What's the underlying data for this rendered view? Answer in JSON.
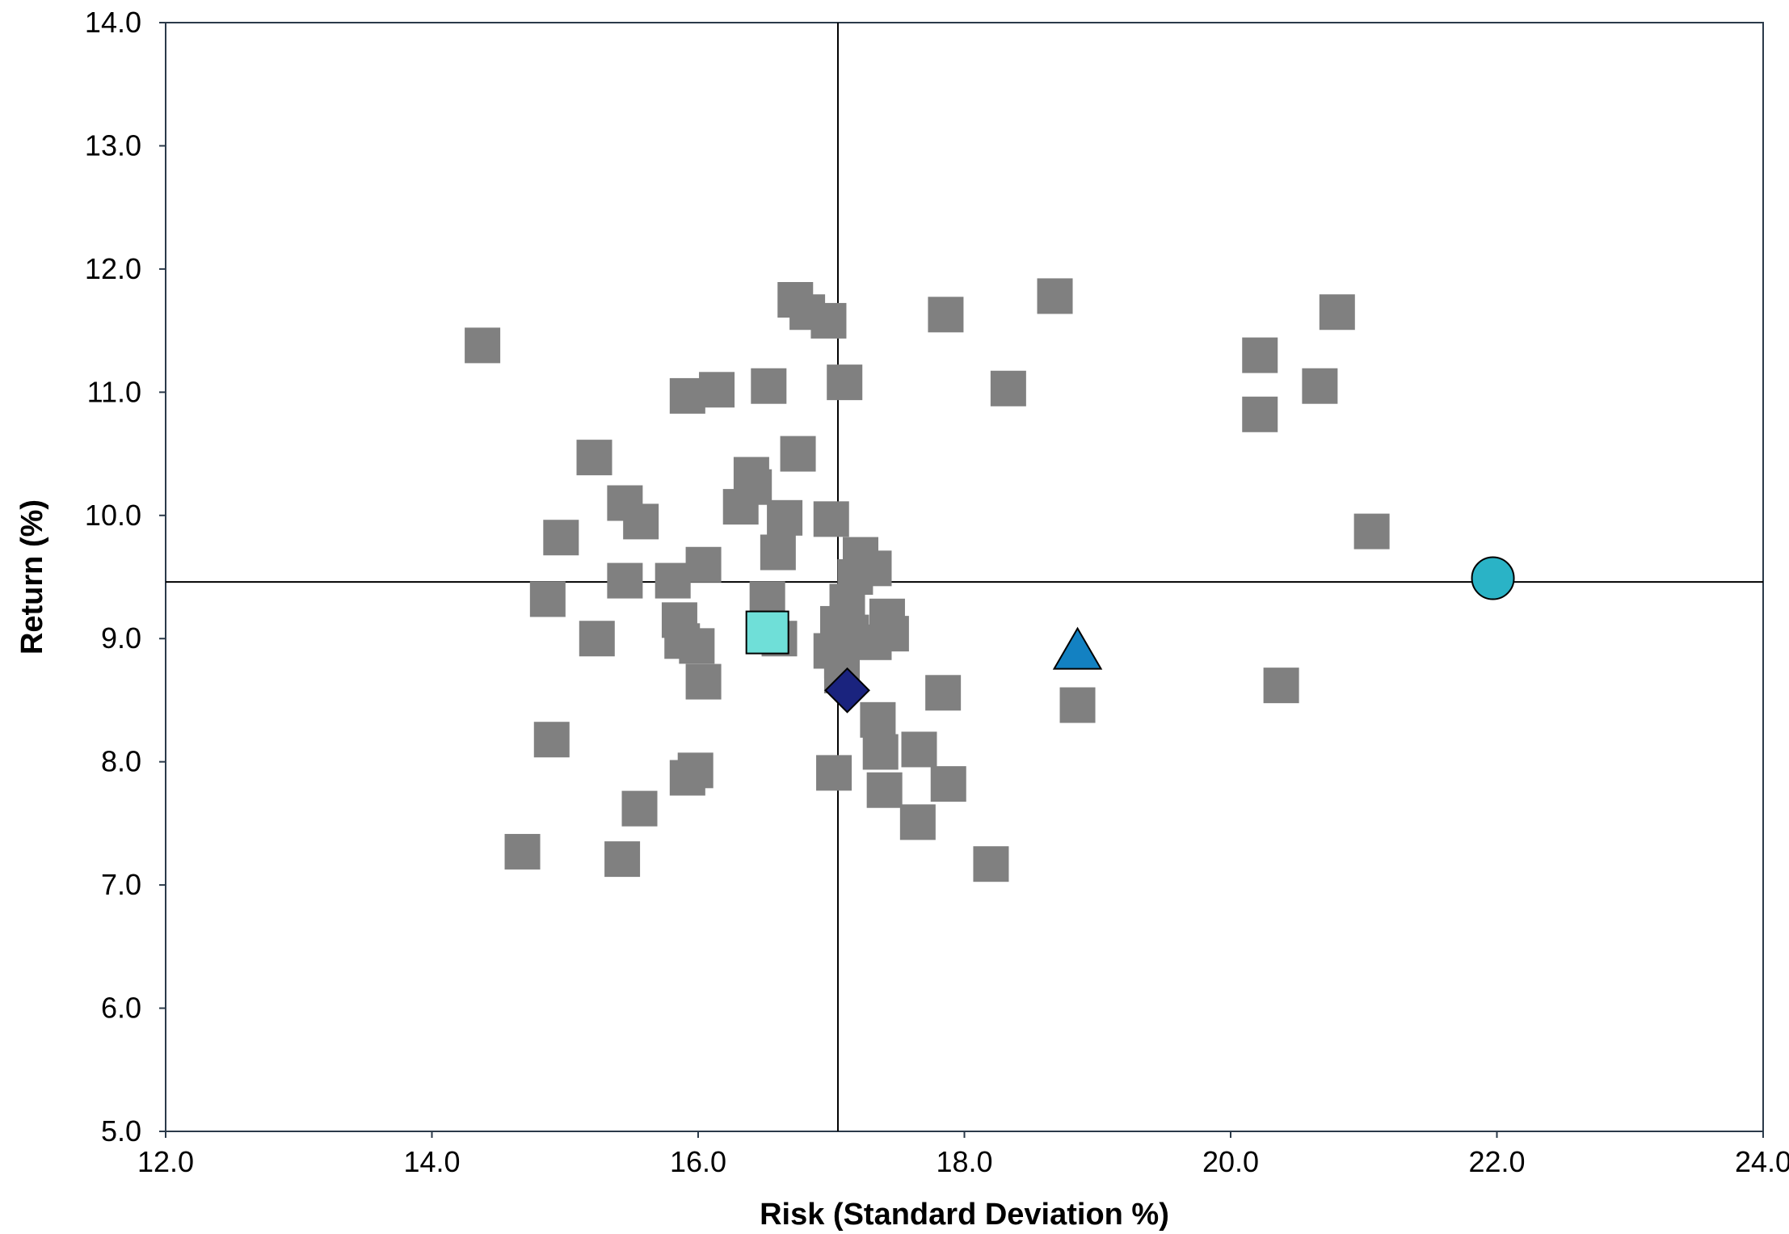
{
  "chart_data": {
    "type": "scatter",
    "title": "",
    "xlabel": "Risk (Standard Deviation %)",
    "ylabel": "Return (%)",
    "xlim": [
      12.0,
      24.0
    ],
    "ylim": [
      5.0,
      14.0
    ],
    "x_ticks": [
      "12.0",
      "14.0",
      "16.0",
      "18.0",
      "20.0",
      "22.0",
      "24.0"
    ],
    "y_ticks": [
      "5.0",
      "6.0",
      "7.0",
      "8.0",
      "9.0",
      "10.0",
      "11.0",
      "12.0",
      "13.0",
      "14.0"
    ],
    "grid": false,
    "legend": "none",
    "reference_lines": {
      "x": 17.05,
      "y": 9.46
    },
    "series": [
      {
        "marker": "square",
        "color": "#808080",
        "points": [
          [
            14.38,
            11.38
          ],
          [
            14.68,
            7.27
          ],
          [
            14.87,
            9.32
          ],
          [
            14.9,
            8.18
          ],
          [
            14.97,
            9.82
          ],
          [
            15.22,
            10.47
          ],
          [
            15.24,
            9.0
          ],
          [
            15.45,
            10.1
          ],
          [
            15.45,
            9.47
          ],
          [
            15.43,
            7.21
          ],
          [
            15.57,
            9.95
          ],
          [
            15.56,
            7.62
          ],
          [
            15.81,
            9.47
          ],
          [
            15.86,
            9.15
          ],
          [
            15.88,
            8.98
          ],
          [
            15.92,
            10.97
          ],
          [
            15.92,
            7.87
          ],
          [
            15.98,
            7.93
          ],
          [
            15.99,
            8.94
          ],
          [
            16.04,
            8.65
          ],
          [
            16.04,
            9.6
          ],
          [
            16.14,
            11.02
          ],
          [
            16.32,
            10.07
          ],
          [
            16.4,
            10.33
          ],
          [
            16.42,
            10.23
          ],
          [
            16.52,
            9.32
          ],
          [
            16.53,
            11.05
          ],
          [
            16.6,
            9.7
          ],
          [
            16.61,
            9.0
          ],
          [
            16.65,
            9.98
          ],
          [
            16.73,
            11.75
          ],
          [
            16.75,
            10.5
          ],
          [
            16.82,
            11.65
          ],
          [
            16.98,
            11.58
          ],
          [
            17.0,
            9.97
          ],
          [
            17.0,
            8.9
          ],
          [
            17.02,
            7.91
          ],
          [
            17.05,
            9.12
          ],
          [
            17.08,
            8.82
          ],
          [
            17.08,
            8.7
          ],
          [
            17.1,
            11.08
          ],
          [
            17.12,
            9.3
          ],
          [
            17.15,
            9.05
          ],
          [
            17.18,
            9.5
          ],
          [
            17.22,
            9.68
          ],
          [
            17.32,
            9.57
          ],
          [
            17.32,
            8.97
          ],
          [
            17.35,
            8.34
          ],
          [
            17.37,
            8.08
          ],
          [
            17.42,
            9.18
          ],
          [
            17.45,
            9.04
          ],
          [
            17.4,
            7.77
          ],
          [
            17.66,
            8.1
          ],
          [
            17.65,
            7.51
          ],
          [
            17.84,
            8.56
          ],
          [
            17.88,
            7.82
          ],
          [
            17.86,
            11.63
          ],
          [
            18.2,
            7.17
          ],
          [
            18.33,
            11.03
          ],
          [
            18.68,
            11.78
          ],
          [
            18.85,
            8.46
          ],
          [
            20.22,
            11.3
          ],
          [
            20.22,
            10.82
          ],
          [
            20.38,
            8.62
          ],
          [
            20.67,
            11.05
          ],
          [
            20.8,
            11.65
          ],
          [
            21.06,
            9.87
          ]
        ]
      },
      {
        "marker": "square-outlined",
        "color": "#6fdfd8",
        "points": [
          [
            16.52,
            9.05
          ]
        ]
      },
      {
        "marker": "diamond",
        "color": "#1a237e",
        "points": [
          [
            17.12,
            8.58
          ]
        ]
      },
      {
        "marker": "triangle",
        "color": "#1381c2",
        "points": [
          [
            18.85,
            8.86
          ]
        ]
      },
      {
        "marker": "circle",
        "color": "#2ab3c6",
        "points": [
          [
            21.97,
            9.49
          ]
        ]
      }
    ]
  }
}
